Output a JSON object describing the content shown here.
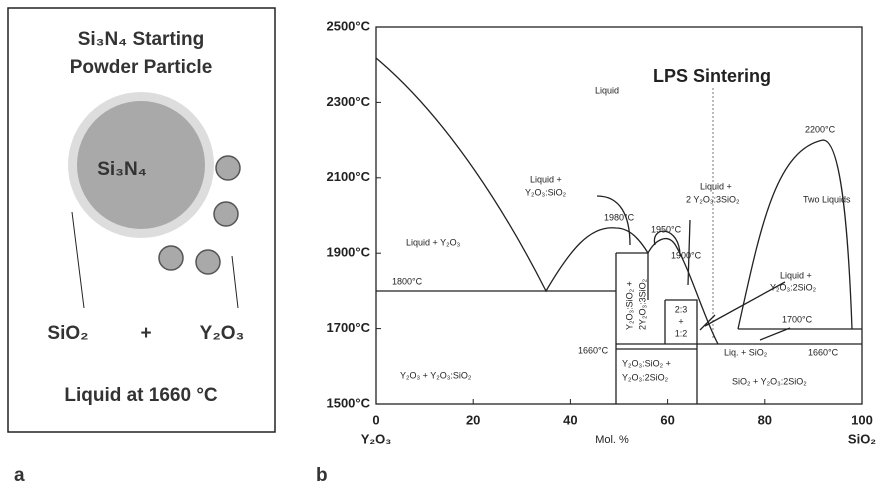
{
  "panel_a": {
    "title_line1": "Si₃N₄ Starting",
    "title_line2": "Powder Particle",
    "particle_label": "Si₃N₄",
    "left_phase": "SiO₂",
    "plus": "+",
    "right_phase": "Y₂O₃",
    "caption": "Liquid at 1660 °C",
    "label": "a"
  },
  "panel_b": {
    "label": "b",
    "title": "LPS Sintering",
    "yticks": [
      "2500°C",
      "2300°C",
      "2100°C",
      "1900°C",
      "1700°C",
      "1500°C"
    ],
    "xticks": [
      "0",
      "20",
      "40",
      "60",
      "80",
      "100"
    ],
    "x_left": "Y₂O₃",
    "x_center": "Mol. %",
    "x_right": "SiO₂",
    "annotations": [
      "Liquid",
      "Liquid + Y₂O₃",
      "1800°C",
      "Liquid +",
      "Y₂O₃:SiO₂",
      "1980°C",
      "1950°C",
      "1900°C",
      "Liquid +",
      "2 Y₂O₃:3SiO₂",
      "2200°C",
      "Two Liquids",
      "Liquid +",
      "Y₂O₃:2SiO₂",
      "1700°C",
      "1660°C",
      "1660°C",
      "Liq. + SiO₂",
      "Y₂O₃ + Y₂O₃:SiO₂",
      "Y₂O₃:SiO₂ +",
      "Y₂O₃:2SiO₂",
      "SiO₂ + Y₂O₃:2SiO₂",
      "Y₂O₃:SiO₂ +",
      "2Y₂O₃:3SiO₂",
      "2:3",
      "+",
      "1:2"
    ]
  }
}
